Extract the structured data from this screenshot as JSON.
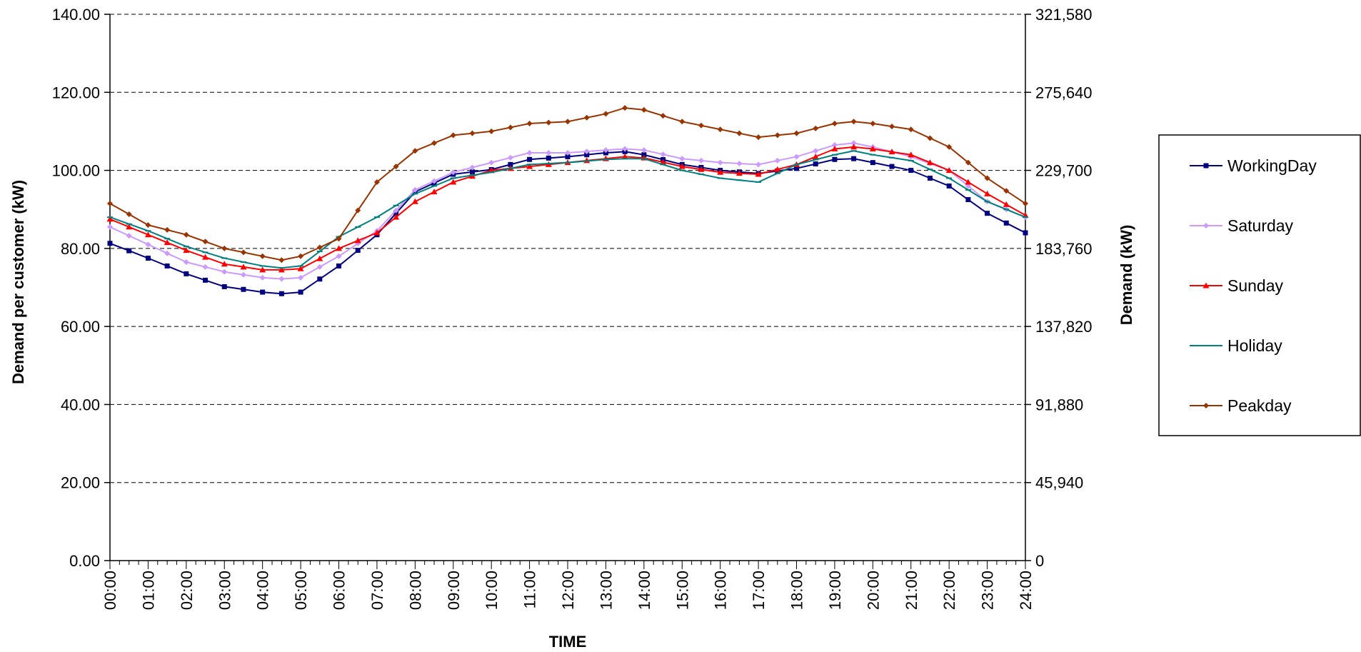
{
  "chart_data": {
    "type": "line",
    "title": "",
    "xlabel": "TIME",
    "ylabel": "Demand per customer (kW)",
    "y2label": "Demand (kW)",
    "ylim": [
      0,
      140
    ],
    "y2lim": [
      0,
      321580
    ],
    "yticks": [
      "0.00",
      "20.00",
      "40.00",
      "60.00",
      "80.00",
      "100.00",
      "120.00",
      "140.00"
    ],
    "y2ticks": [
      "0",
      "45,940",
      "91,880",
      "137,820",
      "183,760",
      "229,700",
      "275,640",
      "321,580"
    ],
    "xticks": [
      "00:00",
      "01:00",
      "02:00",
      "03:00",
      "04:00",
      "05:00",
      "06:00",
      "07:00",
      "08:00",
      "09:00",
      "10:00",
      "11:00",
      "12:00",
      "13:00",
      "14:00",
      "15:00",
      "16:00",
      "17:00",
      "18:00",
      "19:00",
      "20:00",
      "21:00",
      "22:00",
      "23:00",
      "24:00"
    ],
    "xlim": [
      0,
      24
    ],
    "grid": "horizontal-dashed",
    "legend_position": "right",
    "x_hours": [
      0,
      1,
      2,
      3,
      4,
      4.5,
      5,
      6,
      7,
      8,
      9,
      10,
      11,
      12,
      13,
      13.5,
      14,
      15,
      16,
      17,
      18,
      19,
      19.5,
      20,
      21,
      22,
      23,
      24
    ],
    "series": [
      {
        "name": "WorkingDay",
        "color": "#000080",
        "marker": "square",
        "values": [
          81.3,
          77.5,
          73.5,
          70.2,
          68.8,
          68.4,
          68.8,
          75.5,
          83.5,
          94.5,
          99.0,
          100.2,
          102.8,
          103.5,
          104.5,
          104.8,
          104.0,
          101.5,
          100.0,
          99.2,
          100.5,
          102.8,
          103.0,
          102.0,
          100.0,
          96.0,
          89.0,
          84.0
        ]
      },
      {
        "name": "Saturday",
        "color": "#CC99FF",
        "marker": "diamond",
        "values": [
          85.5,
          81.0,
          76.5,
          74.0,
          72.5,
          72.2,
          72.5,
          78.0,
          84.5,
          95.0,
          99.5,
          102.0,
          104.5,
          104.5,
          105.2,
          105.5,
          105.2,
          103.0,
          102.0,
          101.5,
          103.5,
          106.5,
          107.0,
          106.0,
          103.5,
          100.0,
          92.0,
          88.0
        ]
      },
      {
        "name": "Sunday",
        "color": "#FF0000",
        "marker": "triangle",
        "values": [
          87.5,
          83.5,
          79.5,
          76.0,
          74.5,
          74.5,
          74.8,
          80.0,
          84.0,
          92.0,
          97.0,
          100.0,
          101.0,
          102.0,
          103.0,
          103.5,
          103.2,
          101.0,
          99.5,
          99.0,
          101.5,
          105.5,
          106.0,
          105.5,
          104.0,
          100.0,
          94.0,
          88.5
        ]
      },
      {
        "name": "Holiday",
        "color": "#008080",
        "marker": "dash",
        "values": [
          88.0,
          84.5,
          80.5,
          77.5,
          75.5,
          75.0,
          75.5,
          83.0,
          88.0,
          94.0,
          98.0,
          99.5,
          101.5,
          102.0,
          102.8,
          103.0,
          103.0,
          100.0,
          98.0,
          97.0,
          101.5,
          104.0,
          105.0,
          104.0,
          102.5,
          98.0,
          92.0,
          88.0
        ]
      },
      {
        "name": "Peakday",
        "color": "#993300",
        "marker": "diamond",
        "values": [
          91.5,
          86.0,
          83.5,
          80.0,
          78.0,
          77.0,
          78.0,
          82.5,
          97.0,
          105.0,
          109.0,
          110.0,
          112.0,
          112.5,
          114.5,
          116.0,
          115.5,
          112.5,
          110.5,
          108.5,
          109.5,
          112.0,
          112.5,
          112.0,
          110.5,
          106.0,
          98.0,
          91.5
        ]
      }
    ]
  }
}
